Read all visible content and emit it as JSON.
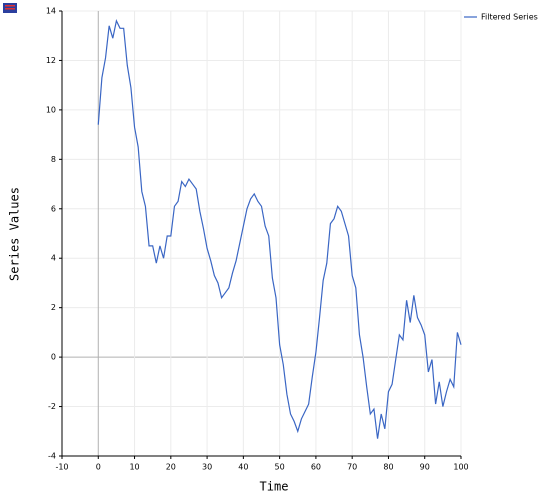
{
  "chart_data": {
    "type": "line",
    "x_label": "Time",
    "y_label": "Series Values",
    "x": [
      0,
      1,
      2,
      3,
      4,
      5,
      6,
      7,
      8,
      9,
      10,
      11,
      12,
      13,
      14,
      15,
      16,
      17,
      18,
      19,
      20,
      21,
      22,
      23,
      24,
      25,
      26,
      27,
      28,
      29,
      30,
      31,
      32,
      33,
      34,
      35,
      36,
      37,
      38,
      39,
      40,
      41,
      42,
      43,
      44,
      45,
      46,
      47,
      48,
      49,
      50,
      51,
      52,
      53,
      54,
      55,
      56,
      57,
      58,
      59,
      60,
      61,
      62,
      63,
      64,
      65,
      66,
      67,
      68,
      69,
      70,
      71,
      72,
      73,
      74,
      75,
      76,
      77,
      78,
      79,
      80,
      81,
      82,
      83,
      84,
      85,
      86,
      87,
      88,
      89,
      90,
      91,
      92,
      93,
      94,
      95,
      96,
      97,
      98,
      99,
      100
    ],
    "series": [
      {
        "name": "Filtered Series",
        "color": "#3a66c4",
        "values": [
          9.4,
          11.3,
          12.1,
          13.4,
          12.9,
          13.6,
          13.3,
          13.3,
          11.8,
          10.9,
          9.3,
          8.5,
          6.7,
          6.1,
          4.5,
          4.5,
          3.8,
          4.5,
          4.0,
          4.9,
          4.9,
          6.1,
          6.3,
          7.1,
          6.9,
          7.2,
          7.0,
          6.8,
          5.9,
          5.2,
          4.4,
          3.9,
          3.3,
          3.0,
          2.4,
          2.6,
          2.8,
          3.4,
          3.9,
          4.6,
          5.3,
          6.0,
          6.4,
          6.6,
          6.3,
          6.1,
          5.3,
          4.9,
          3.2,
          2.4,
          0.5,
          -0.3,
          -1.5,
          -2.3,
          -2.6,
          -3.0,
          -2.5,
          -2.2,
          -1.9,
          -0.8,
          0.2,
          1.6,
          3.1,
          3.8,
          5.4,
          5.6,
          6.1,
          5.9,
          5.4,
          4.9,
          3.3,
          2.8,
          0.9,
          0.0,
          -1.2,
          -2.3,
          -2.1,
          -3.3,
          -2.3,
          -2.9,
          -1.4,
          -1.1,
          -0.1,
          0.9,
          0.7,
          2.3,
          1.4,
          2.5,
          1.6,
          1.3,
          0.9,
          -0.6,
          -0.1,
          -1.9,
          -1.0,
          -2.0,
          -1.4,
          -0.9,
          -1.2,
          1.0,
          0.5
        ]
      }
    ],
    "xlim": [
      -10,
      100
    ],
    "xticks": [
      -10,
      0,
      10,
      20,
      30,
      40,
      50,
      60,
      70,
      80,
      90,
      100
    ],
    "ylim": [
      -4,
      14
    ],
    "yticks": [
      -4,
      -2,
      0,
      2,
      4,
      6,
      8,
      10,
      12,
      14
    ],
    "grid": true,
    "legend": "top-right"
  }
}
